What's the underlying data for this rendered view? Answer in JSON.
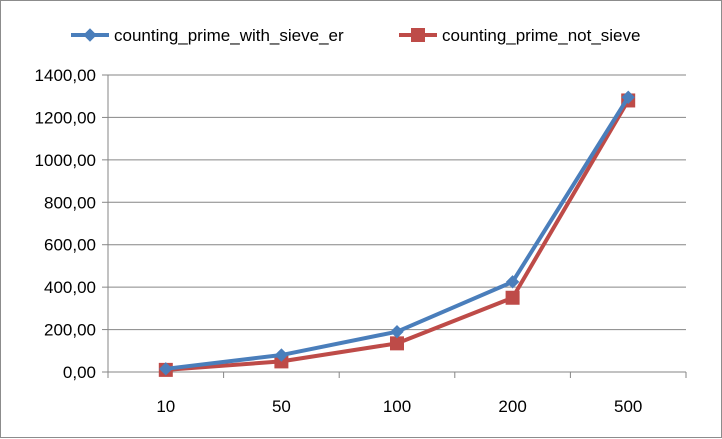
{
  "chart_data": {
    "type": "line",
    "categories": [
      "10",
      "50",
      "100",
      "200",
      "500"
    ],
    "series": [
      {
        "name": "counting_prime_with_sieve_er",
        "values": [
          15,
          80,
          190,
          425,
          1295
        ],
        "color": "#4a7ebb",
        "marker": "diamond"
      },
      {
        "name": "counting_prime_not_sieve",
        "values": [
          10,
          50,
          135,
          350,
          1280
        ],
        "color": "#be4b48",
        "marker": "square"
      }
    ],
    "y_ticks": [
      "0,00",
      "200,00",
      "400,00",
      "600,00",
      "800,00",
      "1000,00",
      "1200,00",
      "1400,00"
    ],
    "ylim": [
      0,
      1400
    ],
    "y_step": 200,
    "grid": true,
    "legend_position": "top"
  }
}
